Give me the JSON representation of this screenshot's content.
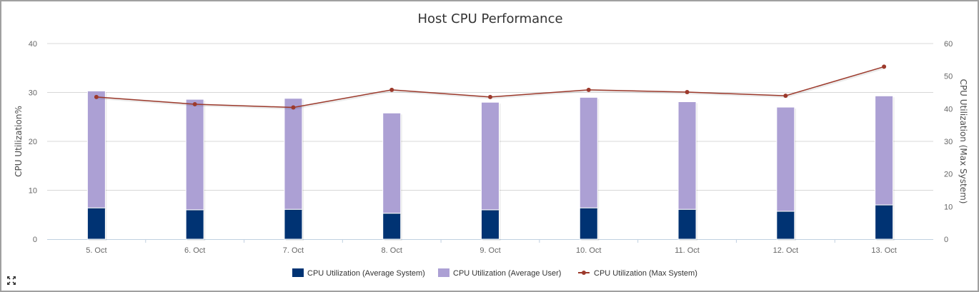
{
  "chart_data": {
    "type": "bar",
    "title": "Host CPU Performance",
    "categories": [
      "5. Oct",
      "6. Oct",
      "7. Oct",
      "8. Oct",
      "9. Oct",
      "10. Oct",
      "11. Oct",
      "12. Oct",
      "13. Oct"
    ],
    "series": [
      {
        "name": "CPU Utilization (Average System)",
        "type": "bar",
        "stack": "cpu",
        "axis": "left",
        "color": "#003373",
        "values": [
          6.4,
          6.0,
          6.1,
          5.3,
          6.0,
          6.4,
          6.1,
          5.7,
          7.0
        ]
      },
      {
        "name": "CPU Utilization (Average User)",
        "type": "bar",
        "stack": "cpu",
        "axis": "left",
        "color": "#aca0d4",
        "values": [
          23.9,
          22.6,
          22.7,
          20.5,
          22.0,
          22.6,
          22.0,
          21.3,
          22.3
        ]
      },
      {
        "name": "CPU Utilization (Max System)",
        "type": "line",
        "axis": "right",
        "color": "#9d3a2c",
        "values": [
          43.6,
          41.4,
          40.4,
          45.8,
          43.6,
          45.8,
          45.1,
          44.0,
          52.9
        ]
      }
    ],
    "yAxisLeft": {
      "label": "CPU Utilization%",
      "ticks": [
        0,
        10,
        20,
        30,
        40
      ],
      "ylim": [
        0,
        40
      ]
    },
    "yAxisRight": {
      "label": "CPU Utilization (Max System)",
      "ticks": [
        0,
        10,
        20,
        30,
        40,
        50,
        60
      ],
      "ylim": [
        0,
        60
      ]
    },
    "grid": true,
    "legend_position": "bottom-center"
  },
  "ui": {
    "expand_icon": "expand-arrows-icon"
  }
}
